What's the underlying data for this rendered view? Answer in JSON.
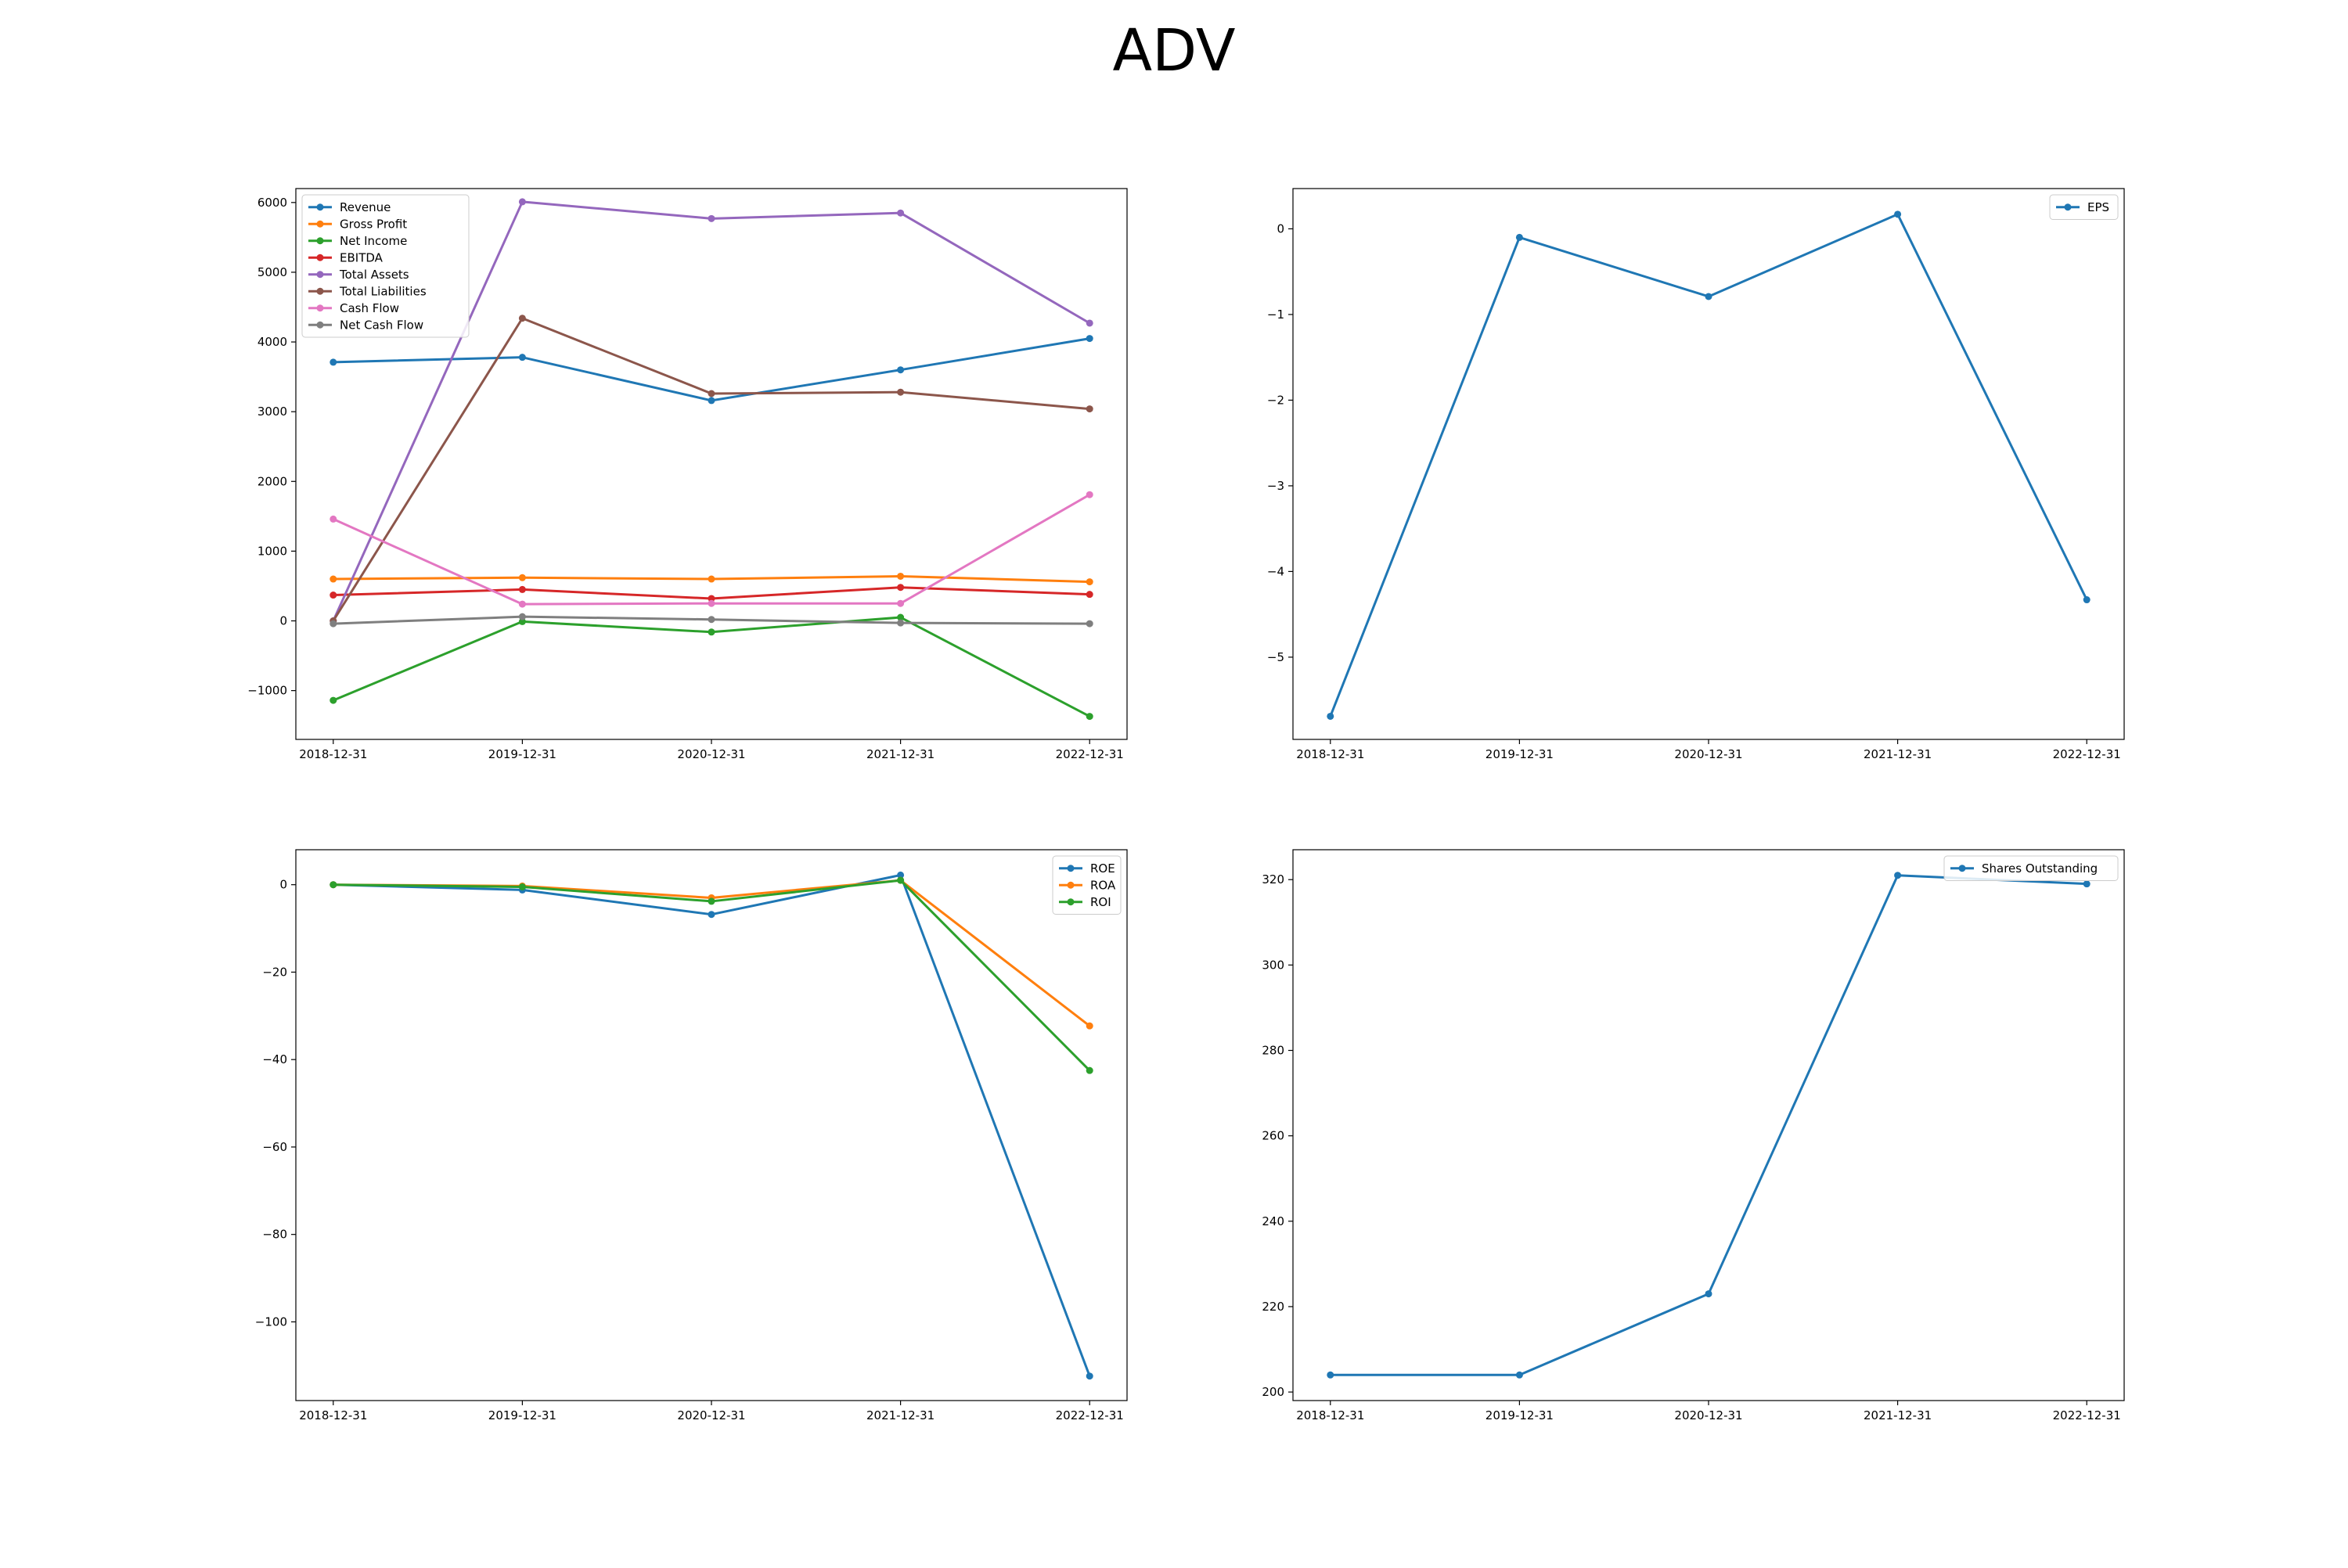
{
  "figure": {
    "title": "ADV"
  },
  "chart_data": [
    {
      "type": "line",
      "title": "",
      "xlabel": "",
      "ylabel": "",
      "x": [
        "2018-12-31",
        "2019-12-31",
        "2020-12-31",
        "2021-12-31",
        "2022-12-31"
      ],
      "ylim": [
        -1700,
        6200
      ],
      "yticks": [
        -1000,
        0,
        1000,
        2000,
        3000,
        4000,
        5000,
        6000
      ],
      "grid": false,
      "legend_position": "upper left",
      "series": [
        {
          "name": "Revenue",
          "color": "#1f77b4",
          "values": [
            3710,
            3780,
            3160,
            3600,
            4050
          ]
        },
        {
          "name": "Gross Profit",
          "color": "#ff7f0e",
          "values": [
            600,
            620,
            600,
            640,
            560
          ]
        },
        {
          "name": "Net Income",
          "color": "#2ca02c",
          "values": [
            -1140,
            -10,
            -160,
            50,
            -1370
          ]
        },
        {
          "name": "EBITDA",
          "color": "#d62728",
          "values": [
            370,
            450,
            320,
            480,
            380
          ]
        },
        {
          "name": "Total Assets",
          "color": "#9467bd",
          "values": [
            0,
            6010,
            5770,
            5850,
            4270
          ]
        },
        {
          "name": "Total Liabilities",
          "color": "#8c564b",
          "values": [
            0,
            4340,
            3260,
            3280,
            3040
          ]
        },
        {
          "name": "Cash Flow",
          "color": "#e377c2",
          "values": [
            1460,
            240,
            250,
            250,
            1810
          ]
        },
        {
          "name": "Net Cash Flow",
          "color": "#7f7f7f",
          "values": [
            -40,
            60,
            20,
            -30,
            -40
          ]
        }
      ]
    },
    {
      "type": "line",
      "title": "",
      "xlabel": "",
      "ylabel": "",
      "x": [
        "2018-12-31",
        "2019-12-31",
        "2020-12-31",
        "2021-12-31",
        "2022-12-31"
      ],
      "ylim": [
        -5.96,
        0.47
      ],
      "yticks": [
        -5,
        -4,
        -3,
        -2,
        -1,
        0
      ],
      "grid": false,
      "legend_position": "upper right",
      "series": [
        {
          "name": "EPS",
          "color": "#1f77b4",
          "values": [
            -5.69,
            -0.1,
            -0.79,
            0.17,
            -4.33
          ]
        }
      ]
    },
    {
      "type": "line",
      "title": "",
      "xlabel": "",
      "ylabel": "",
      "x": [
        "2018-12-31",
        "2019-12-31",
        "2020-12-31",
        "2021-12-31",
        "2022-12-31"
      ],
      "ylim": [
        -118,
        8
      ],
      "yticks": [
        -100,
        -80,
        -60,
        -40,
        -20,
        0
      ],
      "grid": false,
      "legend_position": "upper right",
      "series": [
        {
          "name": "ROE",
          "color": "#1f77b4",
          "values": [
            0,
            -1.2,
            -6.8,
            2.2,
            -112.4
          ]
        },
        {
          "name": "ROA",
          "color": "#ff7f0e",
          "values": [
            0,
            -0.3,
            -3.0,
            1.0,
            -32.3
          ]
        },
        {
          "name": "ROI",
          "color": "#2ca02c",
          "values": [
            0,
            -0.5,
            -3.8,
            1.0,
            -42.5
          ]
        }
      ]
    },
    {
      "type": "line",
      "title": "",
      "xlabel": "",
      "ylabel": "",
      "x": [
        "2018-12-31",
        "2019-12-31",
        "2020-12-31",
        "2021-12-31",
        "2022-12-31"
      ],
      "ylim": [
        198,
        327
      ],
      "yticks": [
        200,
        220,
        240,
        260,
        280,
        300,
        320
      ],
      "grid": false,
      "legend_position": "upper right",
      "series": [
        {
          "name": "Shares Outstanding",
          "color": "#1f77b4",
          "values": [
            204,
            204,
            223,
            321,
            319
          ]
        }
      ]
    }
  ]
}
